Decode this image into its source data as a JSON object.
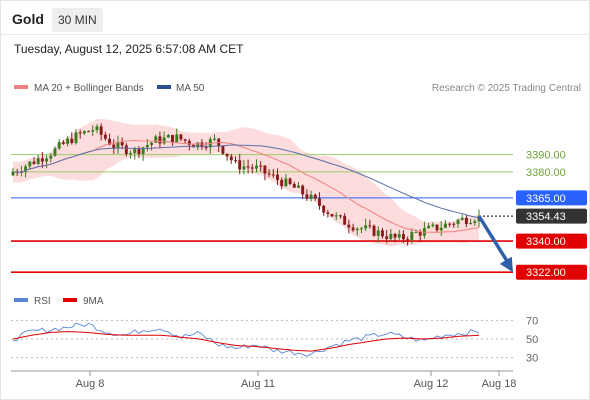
{
  "header": {
    "symbol": "Gold",
    "timeframe": "30 MIN",
    "datetime": "Tuesday, August 12, 2025 6:57:08 AM CET"
  },
  "legend": {
    "ma20_label": "MA 20 + Bollinger Bands",
    "ma50_label": "MA 50",
    "credit": "Research © 2025 Trading Central",
    "rsi_label": "RSI",
    "ma9_label": "9MA"
  },
  "colors": {
    "candle_up": "#3a7d1e",
    "candle_down": "#8a1a1a",
    "bollinger_fill": "#fbd0d0",
    "ma20": "#f08080",
    "ma50": "#5b6ea8",
    "resistance": "#9ccc65",
    "current": "#333333",
    "pivot": "#2962ff",
    "support": "#e00000",
    "forecast_arrow": "#2e5fa8",
    "rsi": "#5b86d6",
    "rsi_ma": "#e00000"
  },
  "chart_data": [
    {
      "type": "candlestick",
      "title": "Gold 30 MIN",
      "x_tick_labels": [
        "Aug 8",
        "Aug 11",
        "Aug 12",
        "Aug 18"
      ],
      "ylim": [
        3310,
        3425
      ],
      "levels": [
        {
          "value": 3390.0,
          "label": "3390.00",
          "kind": "resistance"
        },
        {
          "value": 3380.0,
          "label": "3380.00",
          "kind": "resistance"
        },
        {
          "value": 3365.0,
          "label": "3365.00",
          "kind": "pivot"
        },
        {
          "value": 3354.43,
          "label": "3354.43",
          "kind": "current"
        },
        {
          "value": 3340.0,
          "label": "3340.00",
          "kind": "support"
        },
        {
          "value": 3322.0,
          "label": "3322.00",
          "kind": "support"
        }
      ],
      "forecast": {
        "from": 3354.43,
        "to": 3322.0
      },
      "close_anchors": [
        3380,
        3386,
        3392,
        3400,
        3405,
        3395,
        3392,
        3398,
        3400,
        3396,
        3398,
        3384,
        3382,
        3376,
        3370,
        3362,
        3353,
        3348,
        3345,
        3341,
        3345,
        3348,
        3352,
        3354.43
      ],
      "series": [
        {
          "name": "MA 20 + Bollinger Bands"
        },
        {
          "name": "MA 50"
        }
      ]
    },
    {
      "type": "line",
      "title": "RSI",
      "yticks": [
        70,
        50,
        30
      ],
      "ylim": [
        20,
        80
      ],
      "rsi_anchors": [
        50,
        58,
        60,
        63,
        66,
        58,
        54,
        60,
        62,
        52,
        56,
        44,
        40,
        44,
        38,
        36,
        34,
        42,
        48,
        52,
        56,
        52,
        48,
        54,
        56,
        58
      ],
      "ma9_anchors": [
        50,
        54,
        57,
        58,
        57,
        55,
        54,
        54,
        54,
        52,
        50,
        46,
        43,
        42,
        40,
        38,
        37,
        40,
        44,
        47,
        50,
        51,
        50,
        51,
        53,
        54
      ],
      "series": [
        {
          "name": "RSI"
        },
        {
          "name": "9MA"
        }
      ]
    }
  ]
}
